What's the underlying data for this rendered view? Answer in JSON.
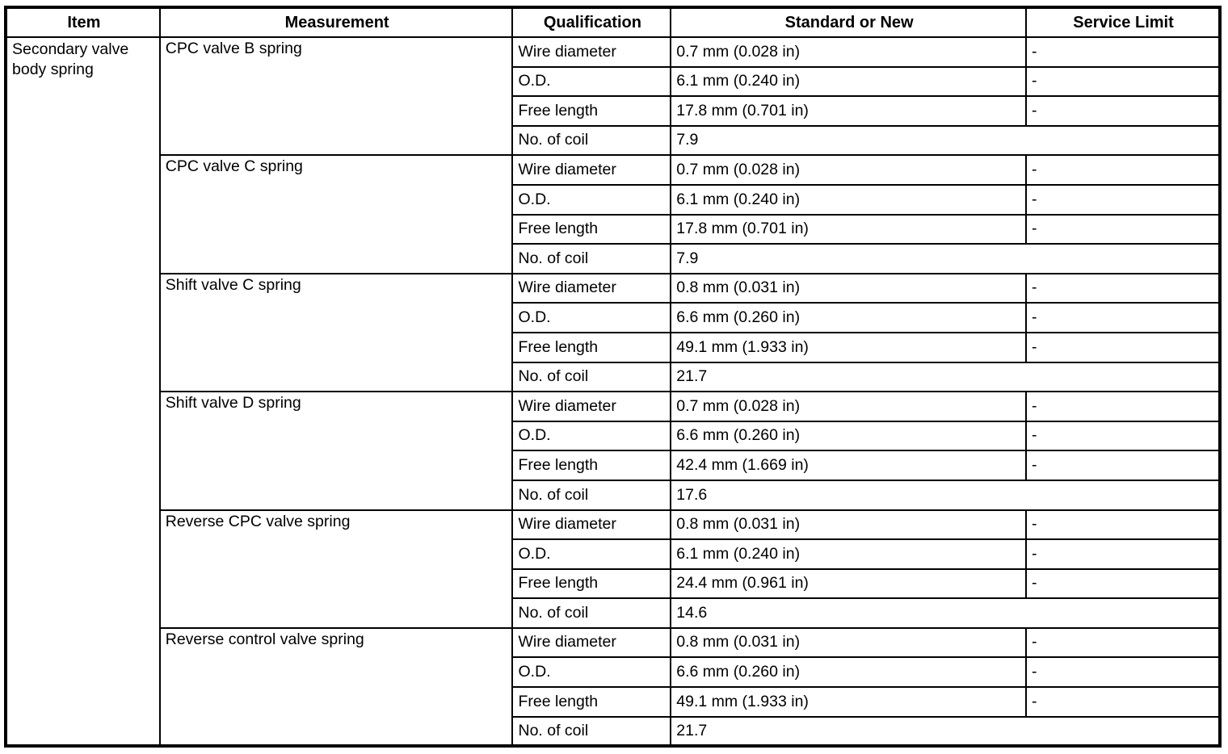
{
  "table": {
    "columns": [
      "Item",
      "Measurement",
      "Qualification",
      "Standard or New",
      "Service Limit"
    ],
    "item": "Secondary valve body spring",
    "sections": [
      {
        "measurement": "CPC valve B spring",
        "rows": [
          {
            "qualification": "Wire diameter",
            "standard": "0.7 mm (0.028 in)",
            "service_limit": "-"
          },
          {
            "qualification": "O.D.",
            "standard": "6.1 mm (0.240 in)",
            "service_limit": "-"
          },
          {
            "qualification": "Free length",
            "standard": "17.8 mm (0.701 in)",
            "service_limit": "-"
          },
          {
            "qualification": "No. of coil",
            "standard": "7.9",
            "spans_service_limit": true
          }
        ]
      },
      {
        "measurement": "CPC valve C spring",
        "rows": [
          {
            "qualification": "Wire diameter",
            "standard": "0.7 mm (0.028 in)",
            "service_limit": "-"
          },
          {
            "qualification": "O.D.",
            "standard": "6.1 mm (0.240 in)",
            "service_limit": "-"
          },
          {
            "qualification": "Free length",
            "standard": "17.8 mm (0.701 in)",
            "service_limit": "-"
          },
          {
            "qualification": "No. of coil",
            "standard": "7.9",
            "spans_service_limit": true
          }
        ]
      },
      {
        "measurement": "Shift valve C spring",
        "rows": [
          {
            "qualification": "Wire diameter",
            "standard": "0.8 mm (0.031 in)",
            "service_limit": "-"
          },
          {
            "qualification": "O.D.",
            "standard": "6.6 mm (0.260 in)",
            "service_limit": "-"
          },
          {
            "qualification": "Free length",
            "standard": "49.1 mm (1.933 in)",
            "service_limit": "-"
          },
          {
            "qualification": "No. of coil",
            "standard": "21.7",
            "spans_service_limit": true
          }
        ]
      },
      {
        "measurement": "Shift valve D spring",
        "rows": [
          {
            "qualification": "Wire diameter",
            "standard": "0.7 mm (0.028 in)",
            "service_limit": "-"
          },
          {
            "qualification": "O.D.",
            "standard": "6.6 mm (0.260 in)",
            "service_limit": "-"
          },
          {
            "qualification": "Free length",
            "standard": "42.4 mm (1.669 in)",
            "service_limit": "-"
          },
          {
            "qualification": "No. of coil",
            "standard": "17.6",
            "spans_service_limit": true
          }
        ]
      },
      {
        "measurement": "Reverse CPC valve spring",
        "rows": [
          {
            "qualification": "Wire diameter",
            "standard": "0.8 mm (0.031 in)",
            "service_limit": "-"
          },
          {
            "qualification": "O.D.",
            "standard": "6.1 mm (0.240 in)",
            "service_limit": "-"
          },
          {
            "qualification": "Free length",
            "standard": "24.4 mm (0.961 in)",
            "service_limit": "-"
          },
          {
            "qualification": "No. of coil",
            "standard": "14.6",
            "spans_service_limit": true
          }
        ]
      },
      {
        "measurement": "Reverse control valve spring",
        "rows": [
          {
            "qualification": "Wire diameter",
            "standard": "0.8 mm (0.031 in)",
            "service_limit": "-"
          },
          {
            "qualification": "O.D.",
            "standard": "6.6 mm (0.260 in)",
            "service_limit": "-"
          },
          {
            "qualification": "Free length",
            "standard": "49.1 mm (1.933 in)",
            "service_limit": "-"
          },
          {
            "qualification": "No. of coil",
            "standard": "21.7",
            "spans_service_limit": true
          }
        ]
      }
    ]
  }
}
